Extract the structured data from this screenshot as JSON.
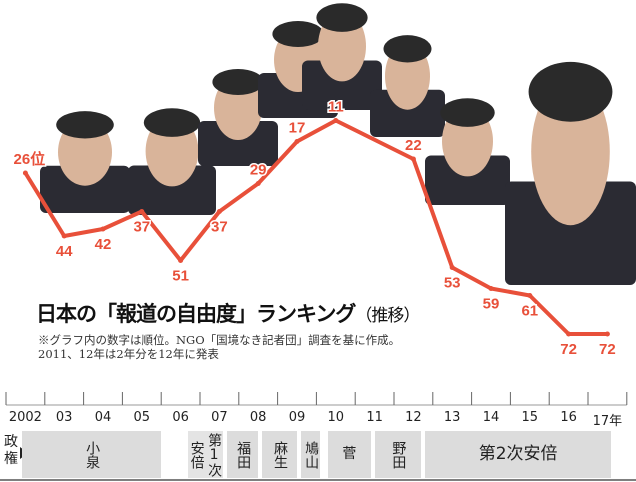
{
  "chart_data": {
    "type": "line",
    "title": "日本の「報道の自由度」ランキング",
    "title_suffix": "（推移）",
    "notes": [
      "※グラフ内の数字は順位。NGO「国境なき記者団」調査を基に作成。",
      "2011、12年は2年分を12年に発表"
    ],
    "x_tick_labels": [
      "2002",
      "03",
      "04",
      "05",
      "06",
      "07",
      "08",
      "09",
      "10",
      "11",
      "12",
      "13",
      "14",
      "15",
      "16",
      "17年"
    ],
    "points": [
      {
        "year": 2002,
        "rank": 26,
        "label": "26位"
      },
      {
        "year": 2003,
        "rank": 44,
        "label": "44"
      },
      {
        "year": 2004,
        "rank": 42,
        "label": "42"
      },
      {
        "year": 2005,
        "rank": 37,
        "label": "37"
      },
      {
        "year": 2006,
        "rank": 51,
        "label": "51"
      },
      {
        "year": 2007,
        "rank": 37,
        "label": "37"
      },
      {
        "year": 2008,
        "rank": 29,
        "label": "29"
      },
      {
        "year": 2009,
        "rank": 17,
        "label": "17"
      },
      {
        "year": 2010,
        "rank": 11,
        "label": "11"
      },
      {
        "year": 2012,
        "rank": 22,
        "label": "22"
      },
      {
        "year": 2013,
        "rank": 53,
        "label": "53"
      },
      {
        "year": 2014,
        "rank": 59,
        "label": "59"
      },
      {
        "year": 2015,
        "rank": 61,
        "label": "61"
      },
      {
        "year": 2016,
        "rank": 72,
        "label": "72"
      },
      {
        "year": 2017,
        "rank": 72,
        "label": "72"
      }
    ],
    "y_axis_inverted": true,
    "grid": false,
    "line_color": "#e8503a",
    "label_color": "#e8503a"
  },
  "governments": {
    "label": "政権",
    "items": [
      {
        "name": "小泉",
        "from": 2002,
        "to": 2006
      },
      {
        "name": "安倍",
        "from": 2006.7,
        "to": 2007.1
      },
      {
        "name": "第1次",
        "from": 2007.1,
        "to": 2007.6
      },
      {
        "name": "福田",
        "from": 2007.7,
        "to": 2008.5
      },
      {
        "name": "麻生",
        "from": 2008.6,
        "to": 2009.5
      },
      {
        "name": "鳩山",
        "from": 2009.6,
        "to": 2010.1
      },
      {
        "name": "菅",
        "from": 2010.3,
        "to": 2011.4
      },
      {
        "name": "野田",
        "from": 2011.5,
        "to": 2012.7
      },
      {
        "name": "第2次安倍",
        "from": 2012.8,
        "to": 2017.6
      }
    ]
  }
}
